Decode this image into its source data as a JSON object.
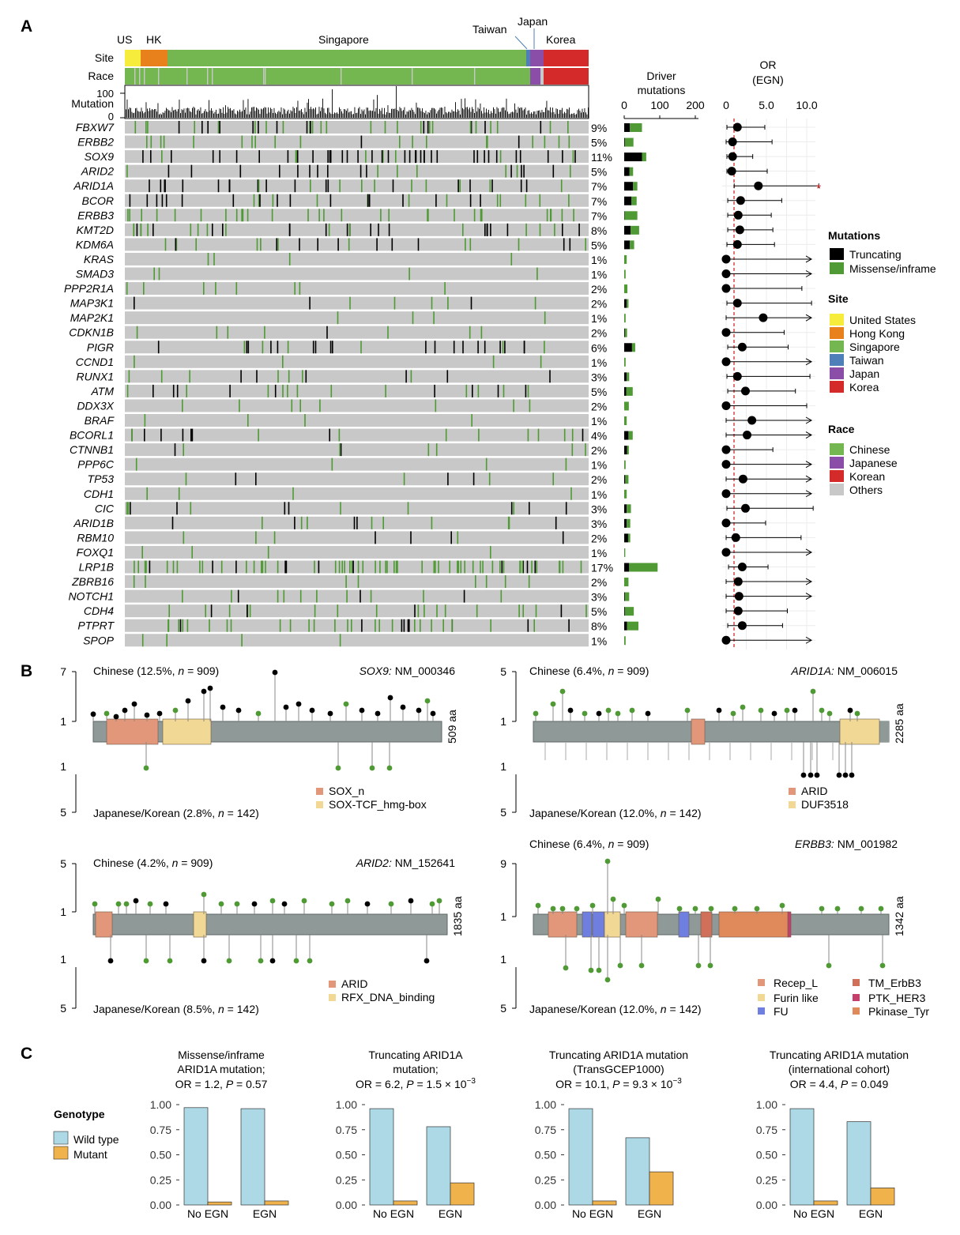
{
  "panel_labels": [
    "A",
    "B",
    "C"
  ],
  "panelA": {
    "site_labels": [
      "US",
      "HK",
      "Singapore",
      "Taiwan",
      "Japan",
      "Korea"
    ],
    "row_labels": {
      "site": "Site",
      "race": "Race",
      "mutation": "Mutation"
    },
    "mutation_ticks": [
      "100",
      "0"
    ],
    "driver_title": "Driver\nmutations",
    "driver_ticks": [
      "0",
      "100",
      "200"
    ],
    "or_title": "OR\n(EGN)",
    "or_ticks": [
      "0",
      "5.0",
      "10.0"
    ],
    "significance_mark": "*",
    "genes": [
      {
        "name": "FBXW7",
        "pct": "9%",
        "trunc": 16,
        "miss": 34,
        "or": 1.4,
        "lo": 0.1,
        "hi": 4.8,
        "arrow": false
      },
      {
        "name": "ERBB2",
        "pct": "5%",
        "trunc": 2,
        "miss": 24,
        "or": 0.8,
        "lo": 0.0,
        "hi": 5.7,
        "arrow": false
      },
      {
        "name": "SOX9",
        "pct": "11%",
        "trunc": 50,
        "miss": 12,
        "or": 0.8,
        "lo": 0.1,
        "hi": 3.3,
        "arrow": false
      },
      {
        "name": "ARID2",
        "pct": "5%",
        "trunc": 15,
        "miss": 10,
        "or": 0.7,
        "lo": 0.1,
        "hi": 5.1,
        "arrow": false
      },
      {
        "name": "ARID1A",
        "pct": "7%",
        "trunc": 25,
        "miss": 12,
        "or": 4.0,
        "lo": 1.0,
        "hi": 11.5,
        "arrow": false
      },
      {
        "name": "BCOR",
        "pct": "7%",
        "trunc": 20,
        "miss": 15,
        "or": 1.8,
        "lo": 0.2,
        "hi": 6.9,
        "arrow": false
      },
      {
        "name": "ERBB3",
        "pct": "7%",
        "trunc": 1,
        "miss": 36,
        "or": 1.5,
        "lo": 0.2,
        "hi": 5.6,
        "arrow": false
      },
      {
        "name": "KMT2D",
        "pct": "8%",
        "trunc": 18,
        "miss": 24,
        "or": 1.7,
        "lo": 0.2,
        "hi": 5.8,
        "arrow": false
      },
      {
        "name": "KDM6A",
        "pct": "5%",
        "trunc": 16,
        "miss": 12,
        "or": 1.4,
        "lo": 0.1,
        "hi": 6.0,
        "arrow": false
      },
      {
        "name": "KRAS",
        "pct": "1%",
        "trunc": 0,
        "miss": 7,
        "or": 0,
        "lo": 0,
        "hi": 11,
        "arrow": true
      },
      {
        "name": "SMAD3",
        "pct": "1%",
        "trunc": 0,
        "miss": 4,
        "or": 0,
        "lo": 0,
        "hi": 11,
        "arrow": true
      },
      {
        "name": "PPP2R1A",
        "pct": "2%",
        "trunc": 0,
        "miss": 9,
        "or": 0,
        "lo": 0,
        "hi": 9.4,
        "arrow": false
      },
      {
        "name": "MAP3K1",
        "pct": "2%",
        "trunc": 7,
        "miss": 5,
        "or": 1.4,
        "lo": 0.1,
        "hi": 10.6,
        "arrow": false
      },
      {
        "name": "MAP2K1",
        "pct": "1%",
        "trunc": 0,
        "miss": 4,
        "or": 4.6,
        "lo": 0,
        "hi": 11,
        "arrow": true
      },
      {
        "name": "CDKN1B",
        "pct": "2%",
        "trunc": 2,
        "miss": 6,
        "or": 0,
        "lo": 0,
        "hi": 7.2,
        "arrow": false
      },
      {
        "name": "PIGR",
        "pct": "6%",
        "trunc": 22,
        "miss": 9,
        "or": 2.0,
        "lo": 0.2,
        "hi": 7.7,
        "arrow": false
      },
      {
        "name": "CCND1",
        "pct": "1%",
        "trunc": 0,
        "miss": 4,
        "or": 0,
        "lo": 0,
        "hi": 11,
        "arrow": true
      },
      {
        "name": "RUNX1",
        "pct": "3%",
        "trunc": 7,
        "miss": 7,
        "or": 1.4,
        "lo": 0.1,
        "hi": 10.4,
        "arrow": false
      },
      {
        "name": "ATM",
        "pct": "5%",
        "trunc": 6,
        "miss": 18,
        "or": 2.4,
        "lo": 0.2,
        "hi": 8.6,
        "arrow": false
      },
      {
        "name": "DDX3X",
        "pct": "2%",
        "trunc": 0,
        "miss": 13,
        "or": 0,
        "lo": 0,
        "hi": 10.0,
        "arrow": false
      },
      {
        "name": "BRAF",
        "pct": "1%",
        "trunc": 0,
        "miss": 7,
        "or": 3.2,
        "lo": 0,
        "hi": 11,
        "arrow": true
      },
      {
        "name": "BCORL1",
        "pct": "4%",
        "trunc": 12,
        "miss": 12,
        "or": 2.6,
        "lo": 0,
        "hi": 11,
        "arrow": true
      },
      {
        "name": "CTNNB1",
        "pct": "2%",
        "trunc": 8,
        "miss": 5,
        "or": 0,
        "lo": 0,
        "hi": 5.8,
        "arrow": false
      },
      {
        "name": "PPP6C",
        "pct": "1%",
        "trunc": 0,
        "miss": 4,
        "or": 0,
        "lo": 0,
        "hi": 11,
        "arrow": true
      },
      {
        "name": "TP53",
        "pct": "2%",
        "trunc": 3,
        "miss": 9,
        "or": 2.1,
        "lo": 0,
        "hi": 11,
        "arrow": true
      },
      {
        "name": "CDH1",
        "pct": "1%",
        "trunc": 0,
        "miss": 7,
        "or": 0,
        "lo": 0,
        "hi": 11,
        "arrow": true
      },
      {
        "name": "CIC",
        "pct": "3%",
        "trunc": 7,
        "miss": 12,
        "or": 2.4,
        "lo": 0.1,
        "hi": 10.8,
        "arrow": false
      },
      {
        "name": "ARID1B",
        "pct": "3%",
        "trunc": 7,
        "miss": 10,
        "or": 0,
        "lo": 0,
        "hi": 4.9,
        "arrow": false
      },
      {
        "name": "RBM10",
        "pct": "2%",
        "trunc": 11,
        "miss": 6,
        "or": 1.2,
        "lo": 0,
        "hi": 9.3,
        "arrow": false
      },
      {
        "name": "FOXQ1",
        "pct": "1%",
        "trunc": 0,
        "miss": 3,
        "or": 0,
        "lo": 0,
        "hi": 11,
        "arrow": true
      },
      {
        "name": "LRP1B",
        "pct": "17%",
        "trunc": 14,
        "miss": 80,
        "or": 2.0,
        "lo": 0.3,
        "hi": 5.2,
        "arrow": false
      },
      {
        "name": "ZBRB16",
        "pct": "2%",
        "trunc": 0,
        "miss": 12,
        "or": 1.5,
        "lo": 0,
        "hi": 11,
        "arrow": true
      },
      {
        "name": "NOTCH1",
        "pct": "3%",
        "trunc": 2,
        "miss": 12,
        "or": 1.6,
        "lo": 0,
        "hi": 11,
        "arrow": true
      },
      {
        "name": "CDH4",
        "pct": "5%",
        "trunc": 2,
        "miss": 25,
        "or": 1.5,
        "lo": 0,
        "hi": 7.6,
        "arrow": false
      },
      {
        "name": "PTPRT",
        "pct": "8%",
        "trunc": 8,
        "miss": 32,
        "or": 2.0,
        "lo": 0.2,
        "hi": 7.0,
        "arrow": false
      },
      {
        "name": "SPOP",
        "pct": "1%",
        "trunc": 0,
        "miss": 4,
        "or": 0,
        "lo": 0,
        "hi": 11,
        "arrow": true
      }
    ],
    "legend": {
      "mutations_title": "Mutations",
      "mutations": [
        {
          "label": "Truncating",
          "color": "#000000"
        },
        {
          "label": "Missense/inframe",
          "color": "#4f9a35"
        }
      ],
      "site_title": "Site",
      "sites": [
        {
          "label": "United States",
          "color": "#f5ec3c"
        },
        {
          "label": "Hong Kong",
          "color": "#e8801c"
        },
        {
          "label": "Singapore",
          "color": "#74b650"
        },
        {
          "label": "Taiwan",
          "color": "#4f7fb8"
        },
        {
          "label": "Japan",
          "color": "#8a4ea8"
        },
        {
          "label": "Korea",
          "color": "#d42a2a"
        }
      ],
      "race_title": "Race",
      "races": [
        {
          "label": "Chinese",
          "color": "#74b650"
        },
        {
          "label": "Japanese",
          "color": "#8a4ea8"
        },
        {
          "label": "Korean",
          "color": "#d42a2a"
        },
        {
          "label": "Others",
          "color": "#c8c8c8"
        }
      ]
    }
  },
  "panelB": {
    "plots": [
      {
        "gene": "SOX9:",
        "transcript": "NM_000346",
        "aa": "509 aa",
        "top_pre": "Chinese (12.5%, ",
        "top_n": "n",
        "top_post": " = 909)",
        "bottom_pre": "Japanese/Korean (2.8%, ",
        "bottom_n": "n",
        "bottom_post": " = 142)",
        "top_max": "7",
        "top_one": "1",
        "bot_one": "1",
        "bot_max": "5",
        "domains": [
          {
            "label": "SOX_n",
            "color": "#e2967a"
          },
          {
            "label": "SOX-TCF_hmg-box",
            "color": "#f2d895"
          }
        ]
      },
      {
        "gene": "ARID1A:",
        "transcript": "NM_006015",
        "aa": "2285 aa",
        "top_pre": "Chinese (6.4%, ",
        "top_n": "n",
        "top_post": " = 909)",
        "bottom_pre": "Japanese/Korean (12.0%, ",
        "bottom_n": "n",
        "bottom_post": " = 142)",
        "top_max": "5",
        "top_one": "1",
        "bot_one": "1",
        "bot_max": "5",
        "domains": [
          {
            "label": "ARID",
            "color": "#e2967a"
          },
          {
            "label": "DUF3518",
            "color": "#f2d895"
          }
        ]
      },
      {
        "gene": "ARID2:",
        "transcript": "NM_152641",
        "aa": "1835 aa",
        "top_pre": "Chinese (4.2%, ",
        "top_n": "n",
        "top_post": " = 909)",
        "bottom_pre": "Japanese/Korean (8.5%, ",
        "bottom_n": "n",
        "bottom_post": " = 142)",
        "top_max": "5",
        "top_one": "1",
        "bot_one": "1",
        "bot_max": "5",
        "domains": [
          {
            "label": "ARID",
            "color": "#e2967a"
          },
          {
            "label": "RFX_DNA_binding",
            "color": "#f2d895"
          }
        ]
      },
      {
        "gene": "ERBB3:",
        "transcript": "NM_001982",
        "aa": "1342 aa",
        "top_pre": "Chinese (6.4%, ",
        "top_n": "n",
        "top_post": " = 909)",
        "bottom_pre": "Japanese/Korean (12.0%, ",
        "bottom_n": "n",
        "bottom_post": " = 142)",
        "top_max": "9",
        "top_one": "1",
        "bot_one": "1",
        "bot_max": "5",
        "domains": [
          {
            "label": "Recep_L",
            "color": "#e2967a"
          },
          {
            "label": "Furin like",
            "color": "#f2d895"
          },
          {
            "label": "FU",
            "color": "#6e7fe0"
          },
          {
            "label": "TM_ErbB3",
            "color": "#d0705a"
          },
          {
            "label": "PTK_HER3",
            "color": "#c4406a"
          },
          {
            "label": "Pkinase_Tyr",
            "color": "#e08a5c"
          }
        ]
      }
    ]
  },
  "panelC": {
    "legend_title": "Genotype",
    "legend": [
      {
        "label": "Wild type",
        "color": "#add8e6"
      },
      {
        "label": "Mutant",
        "color": "#f0b24a"
      }
    ],
    "chart_data": [
      {
        "type": "bar",
        "title_lines": [
          "Missense/inframe",
          "ARID1A mutation;"
        ],
        "stat_pre": "OR = 1.2, ",
        "p_label": "P",
        "stat_post": " = 0.57",
        "sup": "",
        "categories": [
          "No EGN",
          "EGN"
        ],
        "series": [
          {
            "name": "Wild type",
            "values": [
              0.97,
              0.96
            ]
          },
          {
            "name": "Mutant",
            "values": [
              0.03,
              0.04
            ]
          }
        ],
        "yticks": [
          "1.00",
          "0.75",
          "0.50",
          "0.25",
          "0.00"
        ],
        "ylim": [
          0,
          1
        ]
      },
      {
        "type": "bar",
        "title_lines": [
          "Truncating ARID1A",
          "mutation;"
        ],
        "stat_pre": "OR = 6.2, ",
        "p_label": "P",
        "stat_post": " = 1.5 × 10",
        "sup": "−3",
        "categories": [
          "No EGN",
          "EGN"
        ],
        "series": [
          {
            "name": "Wild type",
            "values": [
              0.96,
              0.78
            ]
          },
          {
            "name": "Mutant",
            "values": [
              0.04,
              0.22
            ]
          }
        ],
        "yticks": [
          "1.00",
          "0.75",
          "0.50",
          "0.25",
          "0.00"
        ],
        "ylim": [
          0,
          1
        ]
      },
      {
        "type": "bar",
        "title_lines": [
          "Truncating ARID1A mutation",
          "(TransGCEP1000)"
        ],
        "stat_pre": "OR = 10.1, ",
        "p_label": "P",
        "stat_post": " = 9.3 × 10",
        "sup": "−3",
        "categories": [
          "No EGN",
          "EGN"
        ],
        "series": [
          {
            "name": "Wild type",
            "values": [
              0.96,
              0.67
            ]
          },
          {
            "name": "Mutant",
            "values": [
              0.04,
              0.33
            ]
          }
        ],
        "yticks": [
          "1.00",
          "0.75",
          "0.50",
          "0.25",
          "0.00"
        ],
        "ylim": [
          0,
          1
        ]
      },
      {
        "type": "bar",
        "title_lines": [
          "Truncating ARID1A mutation",
          "(international cohort)"
        ],
        "stat_pre": "OR = 4.4, ",
        "p_label": "P",
        "stat_post": " = 0.049",
        "sup": "",
        "categories": [
          "No EGN",
          "EGN"
        ],
        "series": [
          {
            "name": "Wild type",
            "values": [
              0.96,
              0.83
            ]
          },
          {
            "name": "Mutant",
            "values": [
              0.04,
              0.17
            ]
          }
        ],
        "yticks": [
          "1.00",
          "0.75",
          "0.50",
          "0.25",
          "0.00"
        ],
        "ylim": [
          0,
          1
        ]
      }
    ]
  }
}
